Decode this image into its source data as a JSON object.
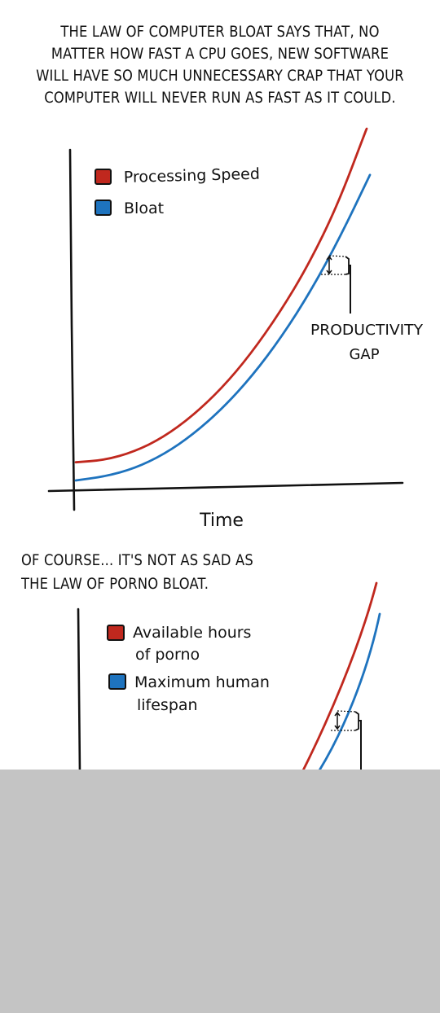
{
  "intro_caption": {
    "lines": [
      "THE LAW OF COMPUTER BLOAT SAYS THAT, NO",
      "MATTER HOW FAST A CPU GOES, NEW SOFTWARE",
      "WILL HAVE SO MUCH UNNECESSARY CRAP THAT YOUR",
      "COMPUTER WILL NEVER RUN AS FAST AS IT COULD."
    ]
  },
  "chart_data": [
    {
      "type": "line",
      "xlabel": "Time",
      "ylabel": "",
      "x": [
        0,
        1,
        2,
        3,
        4,
        5,
        6,
        7,
        8,
        9,
        10
      ],
      "series": [
        {
          "name": "Processing Speed",
          "color": "#c0281e",
          "values": [
            1.0,
            1.3,
            2.2,
            3.7,
            5.9,
            8.7,
            12.2,
            16.4,
            21.3,
            27.3,
            35.0
          ]
        },
        {
          "name": "Bloat",
          "color": "#1e73be",
          "values": [
            0.0,
            0.4,
            1.2,
            2.6,
            4.6,
            7.2,
            10.4,
            14.3,
            18.9,
            24.3,
            30.4
          ]
        }
      ],
      "annotations": [
        {
          "text_lines": [
            "PRODUCTIVITY",
            "GAP"
          ]
        }
      ],
      "grid": false,
      "legend": "top-left"
    },
    {
      "type": "line",
      "xlabel": "",
      "ylabel": "",
      "series": [
        {
          "name": "Available hours of porno",
          "label_lines": [
            "Available hours",
            "of porno"
          ],
          "color": "#c0281e"
        },
        {
          "name": "Maximum human lifespan",
          "label_lines": [
            "Maximum human",
            "lifespan"
          ],
          "color": "#1e73be"
        }
      ],
      "grid": false,
      "legend": "top-left"
    }
  ],
  "porno_caption": {
    "lines": [
      "OF COURSE... IT'S NOT AS SAD AS",
      "THE LAW OF PORNO BLOAT."
    ]
  },
  "colors": {
    "ink": "#111111",
    "red": "#c0281e",
    "blue": "#1e73be",
    "footer_gray": "#c4c4c4"
  }
}
